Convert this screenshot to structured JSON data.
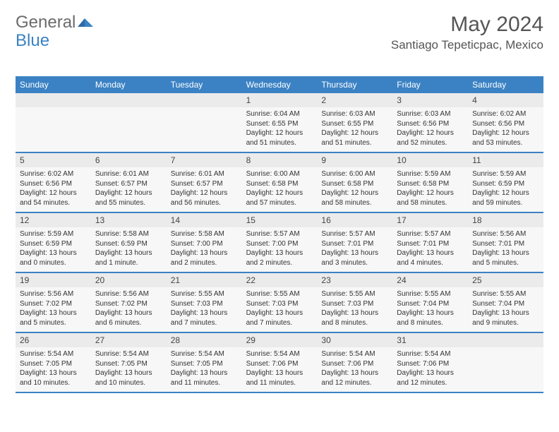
{
  "logo": {
    "text_a": "General",
    "text_b": "Blue",
    "color_gray": "#6b6b6b",
    "color_blue": "#3b82c4"
  },
  "title": "May 2024",
  "location": "Santiago Tepeticpac, Mexico",
  "colors": {
    "header_bg": "#3b82c4",
    "daynum_bg": "#ebebeb",
    "detail_bg": "#f7f7f7",
    "border": "#3b82c4",
    "text_dark": "#333333"
  },
  "day_labels": [
    "Sunday",
    "Monday",
    "Tuesday",
    "Wednesday",
    "Thursday",
    "Friday",
    "Saturday"
  ],
  "weeks": [
    [
      {
        "n": "",
        "lines": []
      },
      {
        "n": "",
        "lines": []
      },
      {
        "n": "",
        "lines": []
      },
      {
        "n": "1",
        "lines": [
          "Sunrise: 6:04 AM",
          "Sunset: 6:55 PM",
          "Daylight: 12 hours",
          "and 51 minutes."
        ]
      },
      {
        "n": "2",
        "lines": [
          "Sunrise: 6:03 AM",
          "Sunset: 6:55 PM",
          "Daylight: 12 hours",
          "and 51 minutes."
        ]
      },
      {
        "n": "3",
        "lines": [
          "Sunrise: 6:03 AM",
          "Sunset: 6:56 PM",
          "Daylight: 12 hours",
          "and 52 minutes."
        ]
      },
      {
        "n": "4",
        "lines": [
          "Sunrise: 6:02 AM",
          "Sunset: 6:56 PM",
          "Daylight: 12 hours",
          "and 53 minutes."
        ]
      }
    ],
    [
      {
        "n": "5",
        "lines": [
          "Sunrise: 6:02 AM",
          "Sunset: 6:56 PM",
          "Daylight: 12 hours",
          "and 54 minutes."
        ]
      },
      {
        "n": "6",
        "lines": [
          "Sunrise: 6:01 AM",
          "Sunset: 6:57 PM",
          "Daylight: 12 hours",
          "and 55 minutes."
        ]
      },
      {
        "n": "7",
        "lines": [
          "Sunrise: 6:01 AM",
          "Sunset: 6:57 PM",
          "Daylight: 12 hours",
          "and 56 minutes."
        ]
      },
      {
        "n": "8",
        "lines": [
          "Sunrise: 6:00 AM",
          "Sunset: 6:58 PM",
          "Daylight: 12 hours",
          "and 57 minutes."
        ]
      },
      {
        "n": "9",
        "lines": [
          "Sunrise: 6:00 AM",
          "Sunset: 6:58 PM",
          "Daylight: 12 hours",
          "and 58 minutes."
        ]
      },
      {
        "n": "10",
        "lines": [
          "Sunrise: 5:59 AM",
          "Sunset: 6:58 PM",
          "Daylight: 12 hours",
          "and 58 minutes."
        ]
      },
      {
        "n": "11",
        "lines": [
          "Sunrise: 5:59 AM",
          "Sunset: 6:59 PM",
          "Daylight: 12 hours",
          "and 59 minutes."
        ]
      }
    ],
    [
      {
        "n": "12",
        "lines": [
          "Sunrise: 5:59 AM",
          "Sunset: 6:59 PM",
          "Daylight: 13 hours",
          "and 0 minutes."
        ]
      },
      {
        "n": "13",
        "lines": [
          "Sunrise: 5:58 AM",
          "Sunset: 6:59 PM",
          "Daylight: 13 hours",
          "and 1 minute."
        ]
      },
      {
        "n": "14",
        "lines": [
          "Sunrise: 5:58 AM",
          "Sunset: 7:00 PM",
          "Daylight: 13 hours",
          "and 2 minutes."
        ]
      },
      {
        "n": "15",
        "lines": [
          "Sunrise: 5:57 AM",
          "Sunset: 7:00 PM",
          "Daylight: 13 hours",
          "and 2 minutes."
        ]
      },
      {
        "n": "16",
        "lines": [
          "Sunrise: 5:57 AM",
          "Sunset: 7:01 PM",
          "Daylight: 13 hours",
          "and 3 minutes."
        ]
      },
      {
        "n": "17",
        "lines": [
          "Sunrise: 5:57 AM",
          "Sunset: 7:01 PM",
          "Daylight: 13 hours",
          "and 4 minutes."
        ]
      },
      {
        "n": "18",
        "lines": [
          "Sunrise: 5:56 AM",
          "Sunset: 7:01 PM",
          "Daylight: 13 hours",
          "and 5 minutes."
        ]
      }
    ],
    [
      {
        "n": "19",
        "lines": [
          "Sunrise: 5:56 AM",
          "Sunset: 7:02 PM",
          "Daylight: 13 hours",
          "and 5 minutes."
        ]
      },
      {
        "n": "20",
        "lines": [
          "Sunrise: 5:56 AM",
          "Sunset: 7:02 PM",
          "Daylight: 13 hours",
          "and 6 minutes."
        ]
      },
      {
        "n": "21",
        "lines": [
          "Sunrise: 5:55 AM",
          "Sunset: 7:03 PM",
          "Daylight: 13 hours",
          "and 7 minutes."
        ]
      },
      {
        "n": "22",
        "lines": [
          "Sunrise: 5:55 AM",
          "Sunset: 7:03 PM",
          "Daylight: 13 hours",
          "and 7 minutes."
        ]
      },
      {
        "n": "23",
        "lines": [
          "Sunrise: 5:55 AM",
          "Sunset: 7:03 PM",
          "Daylight: 13 hours",
          "and 8 minutes."
        ]
      },
      {
        "n": "24",
        "lines": [
          "Sunrise: 5:55 AM",
          "Sunset: 7:04 PM",
          "Daylight: 13 hours",
          "and 8 minutes."
        ]
      },
      {
        "n": "25",
        "lines": [
          "Sunrise: 5:55 AM",
          "Sunset: 7:04 PM",
          "Daylight: 13 hours",
          "and 9 minutes."
        ]
      }
    ],
    [
      {
        "n": "26",
        "lines": [
          "Sunrise: 5:54 AM",
          "Sunset: 7:05 PM",
          "Daylight: 13 hours",
          "and 10 minutes."
        ]
      },
      {
        "n": "27",
        "lines": [
          "Sunrise: 5:54 AM",
          "Sunset: 7:05 PM",
          "Daylight: 13 hours",
          "and 10 minutes."
        ]
      },
      {
        "n": "28",
        "lines": [
          "Sunrise: 5:54 AM",
          "Sunset: 7:05 PM",
          "Daylight: 13 hours",
          "and 11 minutes."
        ]
      },
      {
        "n": "29",
        "lines": [
          "Sunrise: 5:54 AM",
          "Sunset: 7:06 PM",
          "Daylight: 13 hours",
          "and 11 minutes."
        ]
      },
      {
        "n": "30",
        "lines": [
          "Sunrise: 5:54 AM",
          "Sunset: 7:06 PM",
          "Daylight: 13 hours",
          "and 12 minutes."
        ]
      },
      {
        "n": "31",
        "lines": [
          "Sunrise: 5:54 AM",
          "Sunset: 7:06 PM",
          "Daylight: 13 hours",
          "and 12 minutes."
        ]
      },
      {
        "n": "",
        "lines": []
      }
    ]
  ]
}
